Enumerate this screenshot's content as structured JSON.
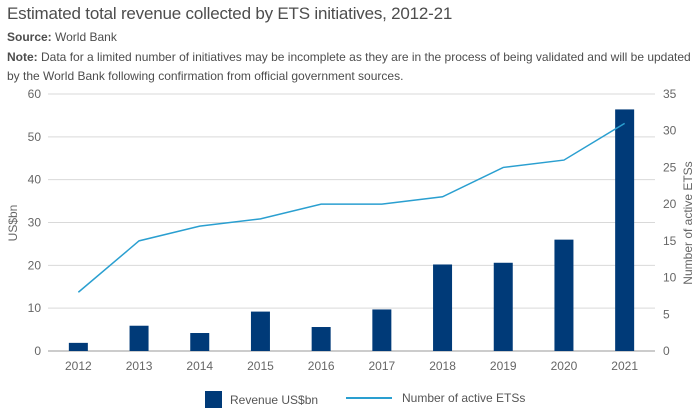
{
  "header": {
    "title": "Estimated total revenue collected by ETS initiatives, 2012-21",
    "source_label": "Source:",
    "source_value": " World Bank",
    "note_label": "Note:",
    "note_value": " Data for a limited number of initiatives may be incomplete as they are in the process of being validated and will be updated by the World Bank following confirmation from official government sources."
  },
  "colors": {
    "bar": "#003a78",
    "line": "#2a9fd0",
    "grid": "#d9d9d9",
    "axis": "#999999"
  },
  "chart_data": {
    "type": "bar",
    "title": "Estimated total revenue collected by ETS initiatives, 2012-21",
    "categories": [
      "2012",
      "2013",
      "2014",
      "2015",
      "2016",
      "2017",
      "2018",
      "2019",
      "2020",
      "2021"
    ],
    "series": [
      {
        "name": "Revenue US$bn",
        "type": "bar",
        "axis": "left",
        "values": [
          1.9,
          5.9,
          4.2,
          9.2,
          5.6,
          9.7,
          20.2,
          20.6,
          26.0,
          56.4
        ]
      },
      {
        "name": "Number of active ETSs",
        "type": "line",
        "axis": "right",
        "values": [
          8,
          15,
          17,
          18,
          20,
          20,
          21,
          25,
          26,
          31
        ]
      }
    ],
    "ylabel": "US$bn",
    "ylim": [
      0,
      60
    ],
    "yticks": [
      "0",
      "10",
      "20",
      "30",
      "40",
      "50",
      "60"
    ],
    "y2label": "Number of active ETSs",
    "y2lim": [
      0,
      35
    ],
    "y2ticks": [
      "0",
      "5",
      "10",
      "15",
      "20",
      "25",
      "30",
      "35"
    ],
    "grid": true,
    "legend": "bottom"
  }
}
